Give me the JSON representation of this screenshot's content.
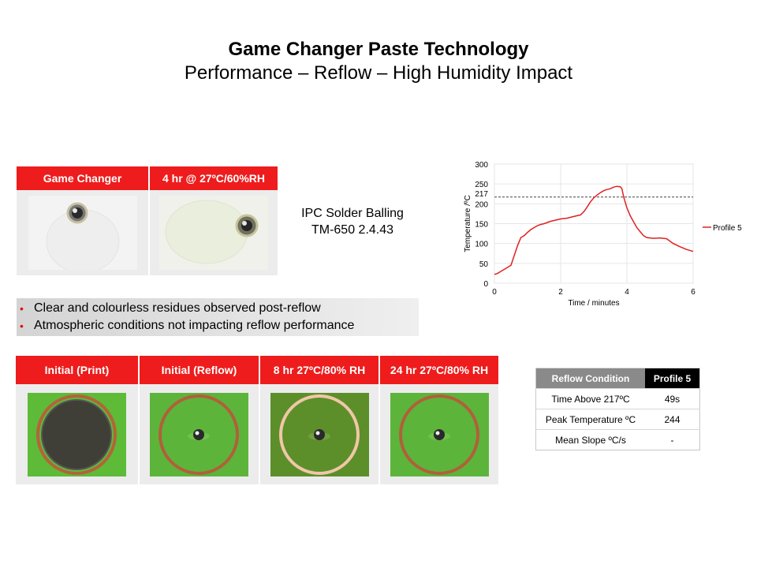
{
  "title": {
    "main": "Game Changer Paste Technology",
    "sub": "Performance – Reflow – High Humidity Impact"
  },
  "top_table": {
    "headers": [
      "Game Changer",
      "4 hr @ 27ºC/60%RH"
    ]
  },
  "ipc": {
    "line1": "IPC Solder Balling",
    "line2": "TM-650 2.4.43"
  },
  "bullets": [
    "Clear and colourless residues observed post-reflow",
    "Atmospheric conditions not impacting reflow performance"
  ],
  "bottom_table": {
    "headers": [
      "Initial (Print)",
      "Initial (Reflow)",
      "8 hr 27ºC/80% RH",
      "24 hr 27ºC/80% RH"
    ]
  },
  "reflow_table": {
    "header_condition": "Reflow Condition",
    "header_profile": "Profile 5",
    "rows": [
      {
        "label": "Time Above 217ºC",
        "value": "49s"
      },
      {
        "label": "Peak Temperature ºC",
        "value": "244"
      },
      {
        "label": "Mean Slope ºC/s",
        "value": "-"
      }
    ]
  },
  "chart_data": {
    "type": "line",
    "xlabel": "Time / minutes",
    "ylabel": "Temperature /ºC",
    "xlim": [
      0,
      6
    ],
    "ylim": [
      0,
      300
    ],
    "xticks": [
      0,
      2,
      4,
      6
    ],
    "yticks": [
      0,
      50,
      100,
      150,
      200,
      250,
      300
    ],
    "reference_line": {
      "y": 217,
      "label": "217",
      "style": "dashed"
    },
    "legend_position": "right",
    "grid": true,
    "series": [
      {
        "name": "Profile 5",
        "color": "#e02020",
        "x": [
          0,
          0.1,
          0.2,
          0.3,
          0.4,
          0.5,
          0.6,
          0.7,
          0.8,
          0.9,
          1.0,
          1.1,
          1.2,
          1.3,
          1.4,
          1.5,
          1.6,
          1.7,
          1.8,
          1.9,
          2.0,
          2.1,
          2.2,
          2.3,
          2.4,
          2.5,
          2.6,
          2.7,
          2.8,
          2.9,
          3.0,
          3.1,
          3.2,
          3.3,
          3.4,
          3.5,
          3.6,
          3.7,
          3.8,
          3.85,
          3.9,
          4.0,
          4.1,
          4.2,
          4.3,
          4.4,
          4.5,
          4.6,
          4.8,
          5.0,
          5.2,
          5.4,
          5.6,
          5.8,
          6.0
        ],
        "y": [
          22,
          25,
          30,
          35,
          40,
          45,
          70,
          95,
          115,
          120,
          128,
          135,
          140,
          145,
          148,
          150,
          153,
          156,
          158,
          160,
          162,
          163,
          164,
          166,
          168,
          170,
          172,
          180,
          192,
          205,
          215,
          222,
          228,
          233,
          236,
          238,
          242,
          244,
          243,
          238,
          218,
          190,
          170,
          155,
          140,
          130,
          120,
          115,
          113,
          114,
          112,
          100,
          92,
          85,
          80
        ]
      }
    ]
  }
}
